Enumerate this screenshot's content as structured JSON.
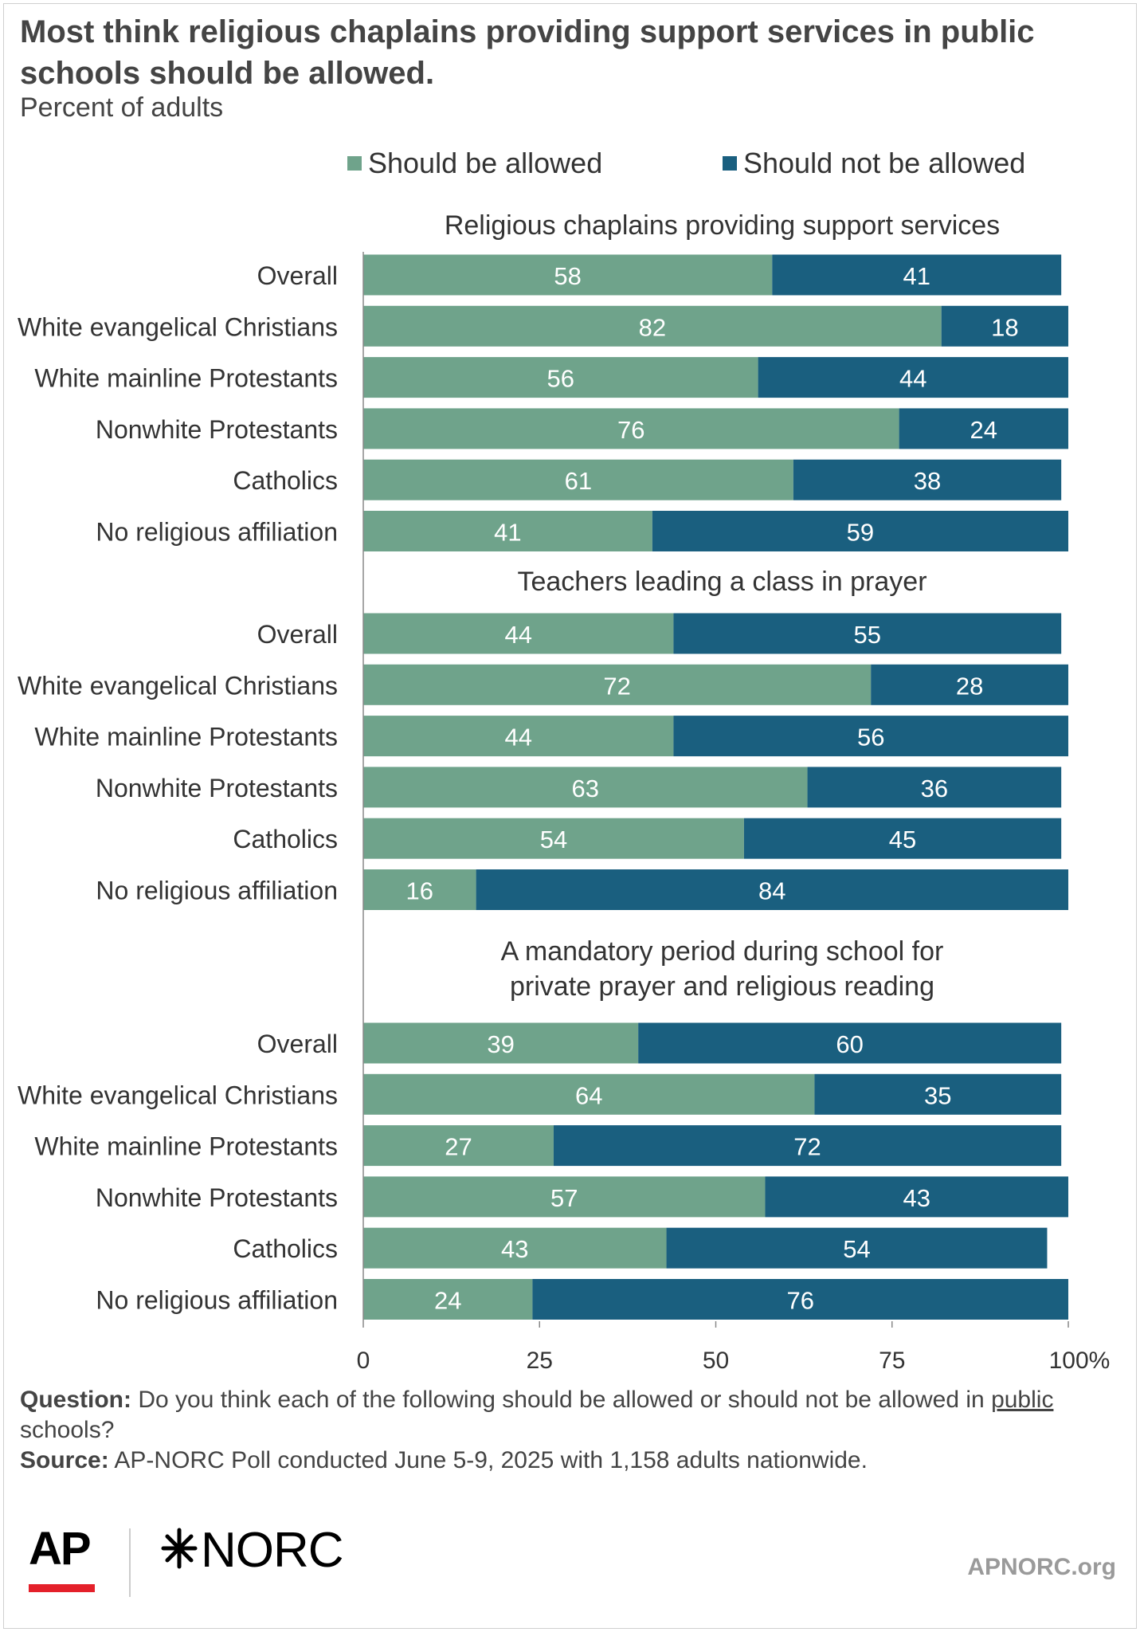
{
  "title": "Most think religious chaplains providing support services in public schools should be allowed.",
  "subtitle": "Percent of adults",
  "colors": {
    "allowed": "#6fa38b",
    "not_allowed": "#1a5f7f",
    "axis": "#555555",
    "text": "#333333"
  },
  "chart_data": {
    "type": "bar",
    "orientation": "horizontal",
    "stacked": true,
    "xlim": [
      0,
      100
    ],
    "x_ticks": [
      "0",
      "25",
      "50",
      "75",
      "100%"
    ],
    "legend": [
      "Should be allowed",
      "Should not be allowed"
    ],
    "legend_position": "top",
    "grid": false,
    "panels": [
      {
        "title": "Religious chaplains providing support services",
        "categories": [
          "Overall",
          "White evangelical Christians",
          "White mainline Protestants",
          "Nonwhite Protestants",
          "Catholics",
          "No religious affiliation"
        ],
        "series": [
          {
            "name": "Should be allowed",
            "values": [
              58,
              82,
              56,
              76,
              61,
              41
            ]
          },
          {
            "name": "Should not be allowed",
            "values": [
              41,
              18,
              44,
              24,
              38,
              59
            ]
          }
        ]
      },
      {
        "title": "Teachers leading a class in prayer",
        "categories": [
          "Overall",
          "White evangelical Christians",
          "White mainline Protestants",
          "Nonwhite Protestants",
          "Catholics",
          "No religious affiliation"
        ],
        "series": [
          {
            "name": "Should be allowed",
            "values": [
              44,
              72,
              44,
              63,
              54,
              16
            ]
          },
          {
            "name": "Should not be allowed",
            "values": [
              55,
              28,
              56,
              36,
              45,
              84
            ]
          }
        ]
      },
      {
        "title": "A mandatory period during school for private prayer and religious reading",
        "title_lines": [
          "A mandatory period during school for",
          "private prayer and religious reading"
        ],
        "categories": [
          "Overall",
          "White evangelical Christians",
          "White mainline Protestants",
          "Nonwhite Protestants",
          "Catholics",
          "No religious affiliation"
        ],
        "series": [
          {
            "name": "Should be allowed",
            "values": [
              39,
              64,
              27,
              57,
              43,
              24
            ]
          },
          {
            "name": "Should not be allowed",
            "values": [
              60,
              35,
              72,
              43,
              54,
              76
            ]
          }
        ]
      }
    ]
  },
  "notes": {
    "question_label": "Question:",
    "question_text_pre": "Do you think each of the following should be allowed or should not be allowed in",
    "question_text_underlined": "public",
    "question_text_post": "schools?",
    "source_label": "Source:",
    "source_text": "AP-NORC Poll conducted June 5-9, 2025 with 1,158 adults nationwide."
  },
  "logos": {
    "ap": "AP",
    "norc": "NORC",
    "star_icon": "norc-star-icon"
  },
  "site": "APNORC.org"
}
